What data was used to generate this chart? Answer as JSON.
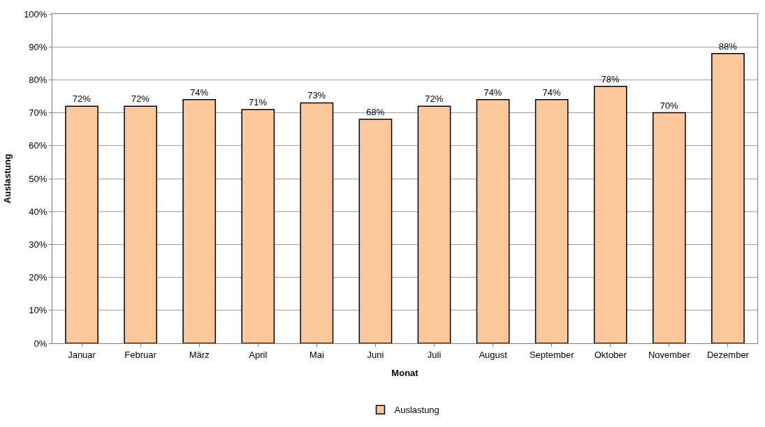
{
  "chart_data": {
    "type": "bar",
    "xlabel": "Monat",
    "ylabel": "Auslastung",
    "categories": [
      "Januar",
      "Februar",
      "März",
      "April",
      "Mai",
      "Juni",
      "Juli",
      "August",
      "September",
      "Oktober",
      "November",
      "Dezember"
    ],
    "series": [
      {
        "name": "Auslastung",
        "color": "#fcc89b",
        "values": [
          72,
          72,
          74,
          71,
          73,
          68,
          72,
          74,
          74,
          78,
          70,
          88
        ],
        "value_labels": [
          "72%",
          "72%",
          "74%",
          "71%",
          "73%",
          "68%",
          "72%",
          "74%",
          "74%",
          "78%",
          "70%",
          "88%"
        ]
      }
    ],
    "ylim": [
      0,
      100
    ],
    "yticks": [
      {
        "value": 0,
        "label": "0%"
      },
      {
        "value": 10,
        "label": "10%"
      },
      {
        "value": 20,
        "label": "20%"
      },
      {
        "value": 30,
        "label": "30%"
      },
      {
        "value": 40,
        "label": "40%"
      },
      {
        "value": 50,
        "label": "50%"
      },
      {
        "value": 60,
        "label": "60%"
      },
      {
        "value": 70,
        "label": "70%"
      },
      {
        "value": 80,
        "label": "80%"
      },
      {
        "value": 90,
        "label": "90%"
      },
      {
        "value": 100,
        "label": "100%"
      }
    ],
    "grid": "y",
    "legend": "bottom"
  }
}
